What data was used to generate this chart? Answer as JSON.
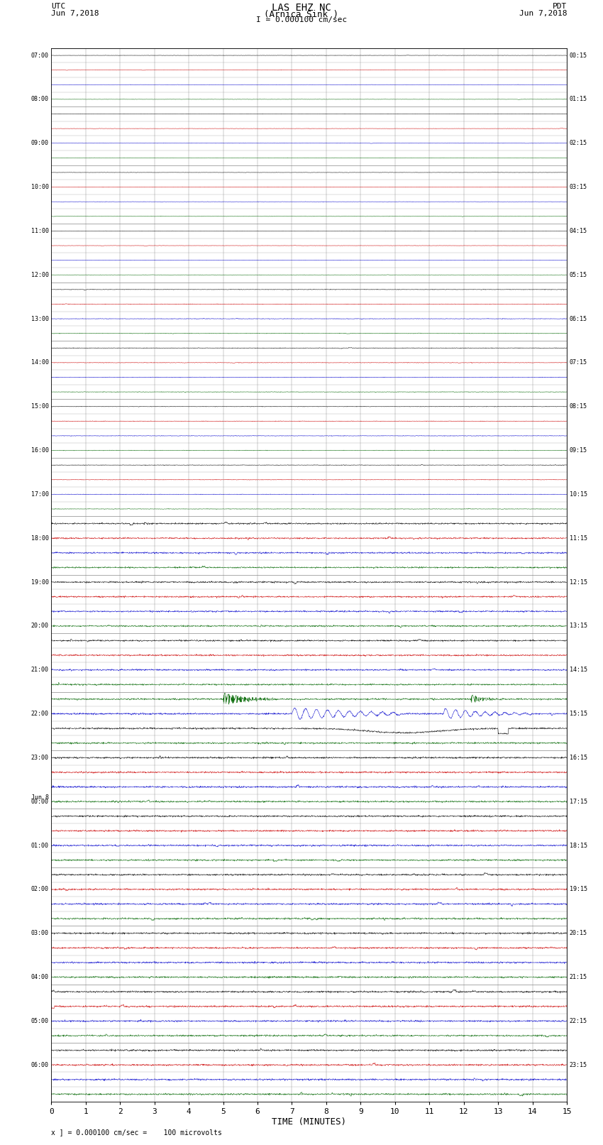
{
  "title_line1": "LAS EHZ NC",
  "title_line2": "(Arnica Sink )",
  "scale_label": "I = 0.000100 cm/sec",
  "xlabel": "TIME (MINUTES)",
  "footer": "x ] = 0.000100 cm/sec =    100 microvolts",
  "utc_times": [
    "07:00",
    "",
    "",
    "08:00",
    "",
    "",
    "09:00",
    "",
    "",
    "10:00",
    "",
    "",
    "11:00",
    "",
    "",
    "12:00",
    "",
    "",
    "13:00",
    "",
    "",
    "14:00",
    "",
    "",
    "15:00",
    "",
    "",
    "16:00",
    "",
    "",
    "17:00",
    "",
    "",
    "18:00",
    "",
    "",
    "19:00",
    "",
    "",
    "20:00",
    "",
    "",
    "21:00",
    "",
    "",
    "22:00",
    "",
    "",
    "23:00",
    "",
    "",
    "Jun 8\n00:00",
    "",
    "",
    "01:00",
    "",
    "",
    "02:00",
    "",
    "",
    "03:00",
    "",
    "",
    "04:00",
    "",
    "",
    "05:00",
    "",
    "",
    "06:00",
    "",
    ""
  ],
  "pdt_times": [
    "00:15",
    "",
    "",
    "01:15",
    "",
    "",
    "02:15",
    "",
    "",
    "03:15",
    "",
    "",
    "04:15",
    "",
    "",
    "05:15",
    "",
    "",
    "06:15",
    "",
    "",
    "07:15",
    "",
    "",
    "08:15",
    "",
    "",
    "09:15",
    "",
    "",
    "10:15",
    "",
    "",
    "11:15",
    "",
    "",
    "12:15",
    "",
    "",
    "13:15",
    "",
    "",
    "14:15",
    "",
    "",
    "15:15",
    "",
    "",
    "16:15",
    "",
    "",
    "17:15",
    "",
    "",
    "18:15",
    "",
    "",
    "19:15",
    "",
    "",
    "20:15",
    "",
    "",
    "21:15",
    "",
    "",
    "22:15",
    "",
    "",
    "23:15",
    "",
    ""
  ],
  "n_rows": 72,
  "x_min": 0,
  "x_max": 15,
  "bg_color": "#ffffff",
  "grid_color": "#aaaaaa",
  "trace_colors_cycle": [
    "#000000",
    "#cc0000",
    "#0000cc",
    "#006600"
  ],
  "noise_amplitude": 0.012,
  "active_amplitude": 0.025,
  "event_row_green": 44,
  "event_row_blue": 45,
  "event_row_black_big": 46,
  "event_amp_green": 0.45,
  "event_amp_blue": 0.42
}
